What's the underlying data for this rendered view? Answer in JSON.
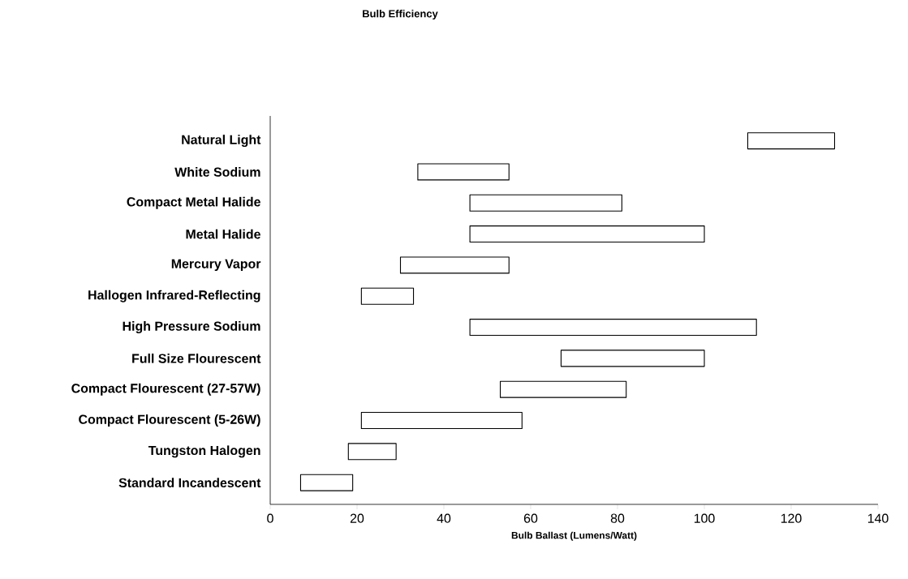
{
  "chart_data": {
    "type": "bar",
    "orientation": "horizontal",
    "title": "Bulb Efficiency",
    "xlabel": "Bulb Ballast (Lumens/Watt)",
    "categories": [
      "Natural Light",
      "White Sodium",
      "Compact Metal Halide",
      "Metal Halide",
      "Mercury Vapor",
      "Hallogen Infrared-Reflecting",
      "High Pressure Sodium",
      "Full Size Flourescent",
      "Compact Flourescent (27-57W)",
      "Compact Flourescent (5-26W)",
      "Tungston Halogen",
      "Standard Incandescent"
    ],
    "base": [
      110,
      34,
      46,
      46,
      30,
      21,
      46,
      67,
      53,
      21,
      18,
      7
    ],
    "values": [
      20,
      21,
      35,
      54,
      25,
      12,
      66,
      33,
      29,
      37,
      11,
      12
    ],
    "color": "#ffffff",
    "xlim": [
      0,
      140
    ],
    "xticks": [
      0,
      20,
      40,
      60,
      80,
      100,
      120,
      140
    ]
  }
}
